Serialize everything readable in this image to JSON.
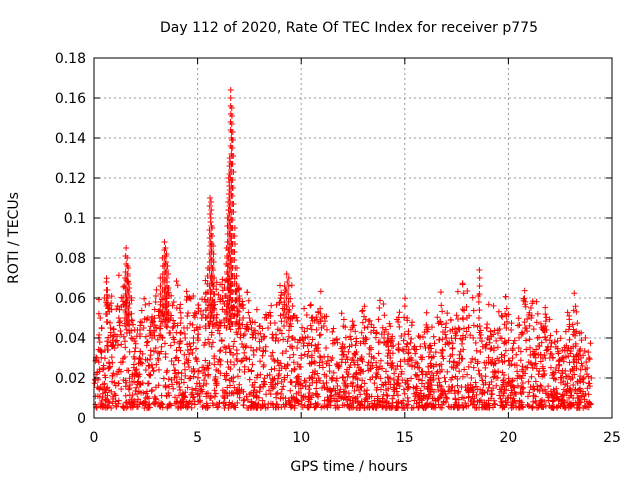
{
  "chart_data": {
    "type": "scatter",
    "title": "Day 112 of 2020, Rate Of TEC Index for receiver p775",
    "xlabel": "GPS time / hours",
    "ylabel": "ROTI / TECUs",
    "xlim": [
      0,
      25
    ],
    "ylim": [
      0,
      0.18
    ],
    "xticks": [
      0,
      5,
      10,
      15,
      20,
      25
    ],
    "xtick_labels": [
      "0",
      "5",
      "10",
      "15",
      "20",
      "25"
    ],
    "yticks": [
      0,
      0.02,
      0.04,
      0.06,
      0.08,
      0.1,
      0.12,
      0.14,
      0.16,
      0.18
    ],
    "ytick_labels": [
      "0",
      "0.02",
      "0.04",
      "0.06",
      "0.08",
      "0.1",
      "0.12",
      "0.14",
      "0.16",
      "0.18"
    ],
    "grid": true,
    "marker": "+",
    "marker_color": "#ff0000",
    "series": [
      {
        "name": "ROTI",
        "x": [
          0.1,
          0.3,
          0.5,
          0.6,
          0.65,
          0.7,
          0.8,
          1.0,
          1.2,
          1.4,
          1.5,
          1.55,
          1.6,
          1.65,
          1.7,
          1.8,
          2.0,
          2.2,
          2.4,
          2.6,
          2.8,
          3.0,
          3.2,
          3.3,
          3.4,
          3.45,
          3.5,
          3.55,
          3.6,
          3.7,
          3.8,
          4.0,
          4.2,
          4.4,
          4.5,
          4.6,
          4.8,
          5.0,
          5.2,
          5.4,
          5.5,
          5.6,
          5.65,
          5.7,
          5.75,
          5.8,
          5.9,
          6.0,
          6.1,
          6.2,
          6.3,
          6.4,
          6.45,
          6.5,
          6.55,
          6.6,
          6.65,
          6.7,
          6.8,
          6.9,
          7.0,
          7.2,
          7.4,
          7.5,
          7.6,
          7.8,
          8.0,
          8.2,
          8.4,
          8.6,
          8.8,
          9.0,
          9.2,
          9.3,
          9.4,
          9.5,
          9.6,
          9.8,
          10.0,
          10.2,
          10.5,
          10.8,
          11.0,
          11.2,
          11.5,
          11.8,
          12.0,
          12.5,
          13.0,
          13.3,
          13.5,
          13.8,
          14.0,
          14.3,
          14.7,
          15.0,
          15.3,
          15.7,
          16.0,
          16.3,
          16.7,
          17.0,
          17.3,
          17.6,
          17.8,
          18.0,
          18.3,
          18.6,
          19.0,
          19.3,
          19.6,
          19.9,
          20.2,
          20.5,
          20.8,
          21.1,
          21.4,
          21.7,
          22.0,
          22.3,
          22.6,
          22.9,
          23.2,
          23.5,
          23.8,
          24.0
        ],
        "y": [
          0.03,
          0.05,
          0.06,
          0.068,
          0.064,
          0.055,
          0.045,
          0.035,
          0.05,
          0.06,
          0.07,
          0.085,
          0.08,
          0.075,
          0.065,
          0.04,
          0.035,
          0.03,
          0.045,
          0.05,
          0.04,
          0.045,
          0.07,
          0.08,
          0.088,
          0.085,
          0.082,
          0.076,
          0.065,
          0.05,
          0.045,
          0.055,
          0.05,
          0.04,
          0.045,
          0.06,
          0.04,
          0.04,
          0.05,
          0.062,
          0.075,
          0.11,
          0.108,
          0.095,
          0.086,
          0.07,
          0.05,
          0.045,
          0.06,
          0.06,
          0.065,
          0.085,
          0.1,
          0.12,
          0.13,
          0.164,
          0.155,
          0.143,
          0.095,
          0.075,
          0.065,
          0.05,
          0.045,
          0.05,
          0.045,
          0.04,
          0.035,
          0.04,
          0.045,
          0.04,
          0.04,
          0.06,
          0.066,
          0.072,
          0.07,
          0.05,
          0.04,
          0.035,
          0.03,
          0.04,
          0.05,
          0.035,
          0.05,
          0.035,
          0.03,
          0.025,
          0.035,
          0.03,
          0.04,
          0.035,
          0.03,
          0.038,
          0.04,
          0.03,
          0.035,
          0.042,
          0.03,
          0.025,
          0.035,
          0.03,
          0.048,
          0.04,
          0.035,
          0.045,
          0.05,
          0.05,
          0.04,
          0.074,
          0.04,
          0.035,
          0.04,
          0.045,
          0.03,
          0.035,
          0.045,
          0.05,
          0.04,
          0.045,
          0.03,
          0.025,
          0.03,
          0.035,
          0.043,
          0.03,
          0.025,
          0.02
        ]
      }
    ]
  }
}
